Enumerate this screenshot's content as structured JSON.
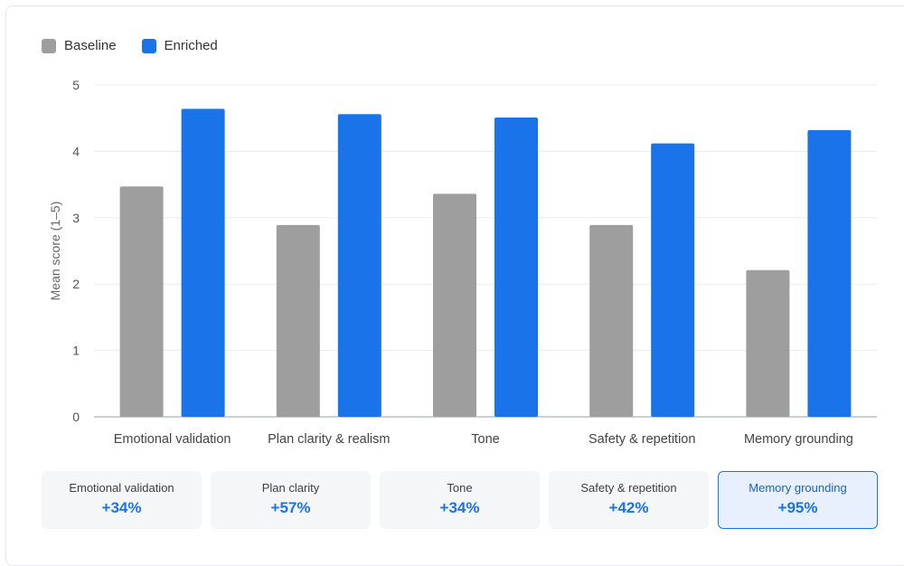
{
  "colors": {
    "baseline": "#9e9e9e",
    "enriched": "#1a73e8"
  },
  "legend": {
    "baseline_label": "Baseline",
    "enriched_label": "Enriched"
  },
  "chart_data": {
    "type": "bar",
    "categories": [
      "Emotional validation",
      "Plan clarity & realism",
      "Tone",
      "Safety & repetition",
      "Memory grounding"
    ],
    "series": [
      {
        "name": "Baseline",
        "values": [
          3.47,
          2.89,
          3.36,
          2.89,
          2.21
        ]
      },
      {
        "name": "Enriched",
        "values": [
          4.64,
          4.56,
          4.51,
          4.12,
          4.32
        ]
      }
    ],
    "ylabel": "Mean score (1–5)",
    "ylim": [
      0,
      5
    ],
    "yticks": [
      "0",
      "1",
      "2",
      "3",
      "4",
      "5"
    ],
    "grid": true,
    "legend_position": "top-left"
  },
  "summary": [
    {
      "label": "Emotional validation",
      "value": "+34%",
      "active": false
    },
    {
      "label": "Plan clarity",
      "value": "+57%",
      "active": false
    },
    {
      "label": "Tone",
      "value": "+34%",
      "active": false
    },
    {
      "label": "Safety & repetition",
      "value": "+42%",
      "active": false
    },
    {
      "label": "Memory grounding",
      "value": "+95%",
      "active": true
    }
  ]
}
